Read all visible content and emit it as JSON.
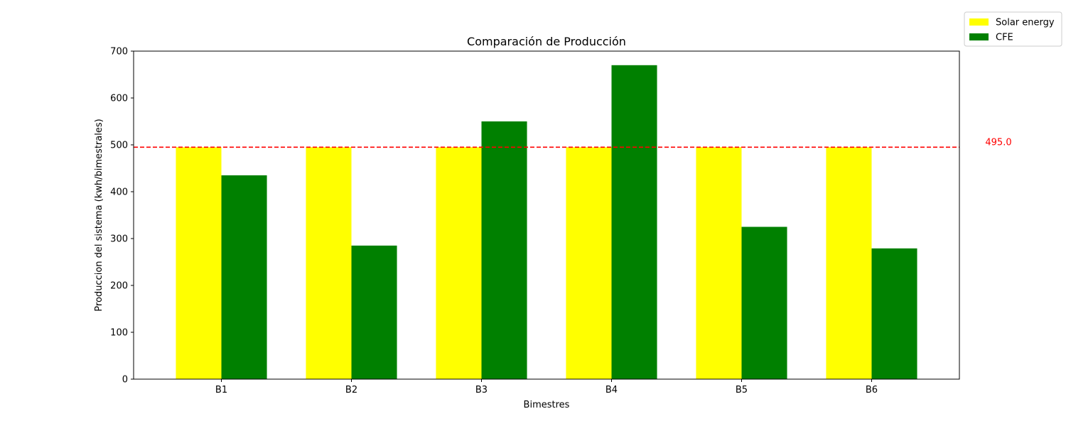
{
  "chart_data": {
    "type": "bar",
    "title": "Comparación de Producción",
    "xlabel": "Bimestres",
    "ylabel": "Produccion del sistema (kwh/bimestrales)",
    "categories": [
      "B1",
      "B2",
      "B3",
      "B4",
      "B5",
      "B6"
    ],
    "series": [
      {
        "name": "Solar energy",
        "color": "#ffff00",
        "values": [
          495,
          495,
          495,
          495,
          495,
          495
        ]
      },
      {
        "name": "CFE",
        "color": "#008000",
        "values": [
          435,
          285,
          550,
          670,
          325,
          279
        ]
      }
    ],
    "ylim": [
      0,
      700
    ],
    "yticks": [
      "0",
      "100",
      "200",
      "300",
      "400",
      "500",
      "600",
      "700"
    ],
    "grid": false,
    "legend_position": "top-right",
    "reference_line": {
      "value": 495.0,
      "label": "495.0",
      "color": "#ff0000",
      "style": "dashed"
    }
  }
}
